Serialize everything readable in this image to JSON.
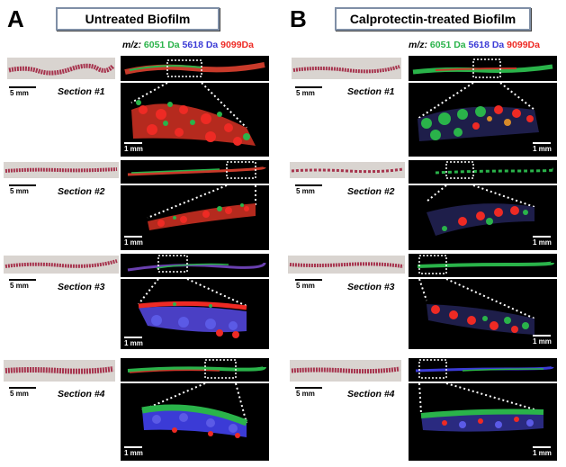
{
  "panels": [
    {
      "letter": "A",
      "title": "Untreated Biofilm",
      "legend": {
        "mz_label": "m/z:",
        "green": "6051 Da",
        "blue": "5618 Da",
        "red": "9099Da"
      },
      "sections": [
        {
          "label": "Section #1",
          "thumb_scale": "5 mm",
          "zoom_scale": "1 mm"
        },
        {
          "label": "Section #2",
          "thumb_scale": "5 mm",
          "zoom_scale": "1 mm"
        },
        {
          "label": "Section #3",
          "thumb_scale": "5 mm",
          "zoom_scale": "1 mm"
        },
        {
          "label": "Section #4",
          "thumb_scale": "5 mm",
          "zoom_scale": "1 mm"
        }
      ]
    },
    {
      "letter": "B",
      "title": "Calprotectin-treated Biofilm",
      "legend": {
        "mz_label": "m/z:",
        "green": "6051 Da",
        "blue": "5618 Da",
        "red": "9099Da"
      },
      "sections": [
        {
          "label": "Section #1",
          "thumb_scale": "5 mm",
          "zoom_scale": "1 mm"
        },
        {
          "label": "Section #2",
          "thumb_scale": "5 mm",
          "zoom_scale": "1 mm"
        },
        {
          "label": "Section #3",
          "thumb_scale": "5 mm",
          "zoom_scale": "1 mm"
        },
        {
          "label": "Section #4",
          "thumb_scale": "5 mm",
          "zoom_scale": "1 mm"
        }
      ]
    }
  ],
  "colors": {
    "green": "#2ab34a",
    "blue": "#3b3bd6",
    "red": "#ee2a24",
    "tissue": "#a6334d",
    "thumb_bg": "#d9d4d0",
    "title_border": "#7f8fa6"
  }
}
